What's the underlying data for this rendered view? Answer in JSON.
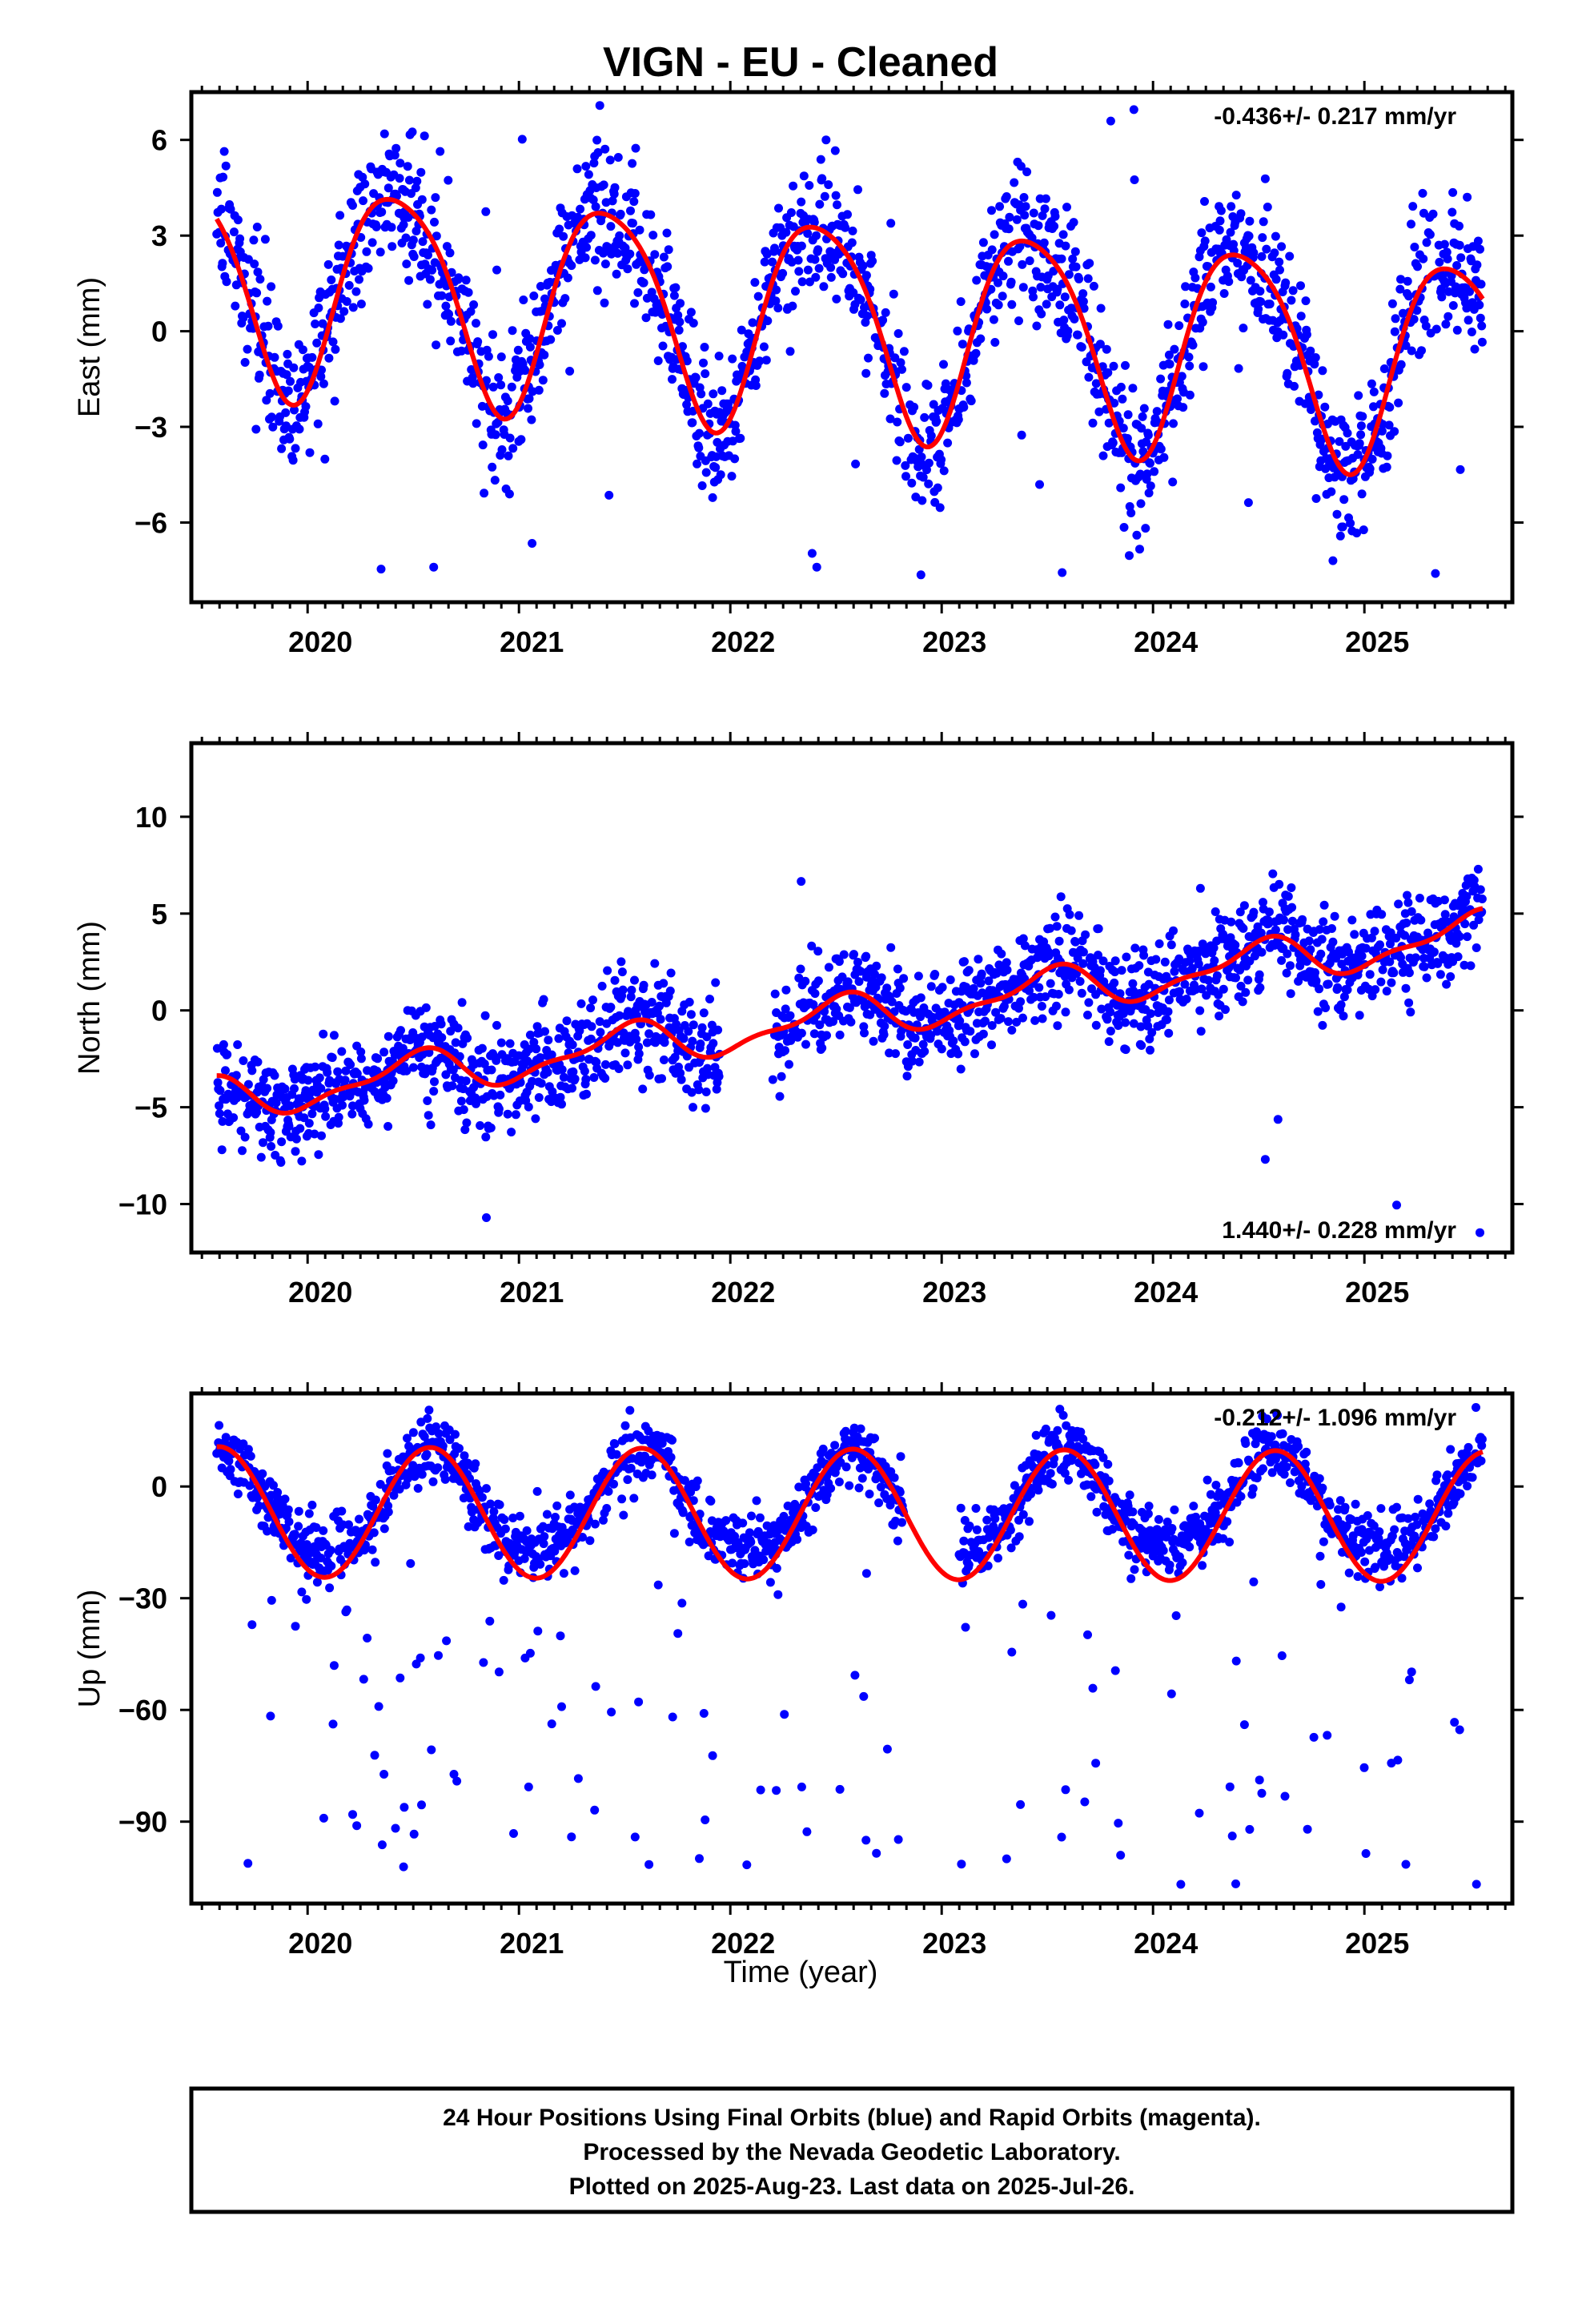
{
  "title": "VIGN  - EU - Cleaned",
  "xlabel": "Time (year)",
  "footer": {
    "line1": "24 Hour Positions Using Final Orbits (blue) and Rapid Orbits (magenta).",
    "line2": "Processed by the Nevada Geodetic Laboratory.",
    "line3": "Plotted on 2025-Aug-23. Last data on 2025-Jul-26."
  },
  "colors": {
    "points": "#0000ff",
    "model": "#ff0000",
    "frame": "#000000"
  },
  "chart_data": [
    {
      "type": "scatter",
      "component": "east",
      "ylabel": "East (mm)",
      "rate_text": "-0.436+/- 0.217 mm/yr",
      "rate_position": "top-right",
      "xlim": [
        2019.45,
        2025.7
      ],
      "ylim": [
        -8.5,
        7.5
      ],
      "xticks": [
        2020,
        2021,
        2022,
        2023,
        2024,
        2025
      ],
      "xtick_labels": [
        "2020",
        "2021",
        "2022",
        "2023",
        "2024",
        "2025"
      ],
      "yticks": [
        -6,
        -3,
        0,
        3,
        6
      ],
      "ytick_labels": [
        "−6",
        "−3",
        "0",
        "3",
        "6"
      ],
      "model": {
        "trend": -0.436,
        "offset": 1.6,
        "ref_year": 2019.6,
        "amplitude": 3.3,
        "peak_year_fraction": 0.42,
        "semi_amplitude": 0.5,
        "semi_peak": 0.2
      },
      "scatter": {
        "noise_sd": 1.1,
        "outlier_rate": 0.02,
        "outlier_range": [
          -8.0,
          7.2
        ]
      },
      "data_start": 2019.57,
      "data_end": 2025.56,
      "gaps": []
    },
    {
      "type": "scatter",
      "component": "north",
      "ylabel": "North (mm)",
      "rate_text": "1.440+/- 0.228 mm/yr",
      "rate_position": "bottom-right",
      "xlim": [
        2019.45,
        2025.7
      ],
      "ylim": [
        -12.5,
        13.8
      ],
      "xticks": [
        2020,
        2021,
        2022,
        2023,
        2024,
        2025
      ],
      "xtick_labels": [
        "2020",
        "2021",
        "2022",
        "2023",
        "2024",
        "2025"
      ],
      "yticks": [
        -10,
        -5,
        0,
        5,
        10
      ],
      "ytick_labels": [
        "−10",
        "−5",
        "0",
        "5",
        "10"
      ],
      "model": {
        "trend": 1.44,
        "offset": -4.6,
        "ref_year": 2019.6,
        "amplitude": 1.0,
        "peak_year_fraction": 0.5,
        "semi_amplitude": 0.4,
        "semi_peak": 0.1
      },
      "scatter": {
        "noise_sd": 1.3,
        "outlier_rate": 0.01,
        "outlier_range": [
          -12.0,
          13.2
        ]
      },
      "data_start": 2019.57,
      "data_end": 2025.56,
      "gaps": [
        [
          2021.95,
          2022.2
        ]
      ]
    },
    {
      "type": "scatter",
      "component": "up",
      "ylabel": "Up (mm)",
      "rate_text": "-0.212+/- 1.096 mm/yr",
      "rate_position": "top-right",
      "xlim": [
        2019.45,
        2025.7
      ],
      "ylim": [
        -112,
        25
      ],
      "xticks": [
        2020,
        2021,
        2022,
        2023,
        2024,
        2025
      ],
      "xtick_labels": [
        "2020",
        "2021",
        "2022",
        "2023",
        "2024",
        "2025"
      ],
      "yticks": [
        -90,
        -60,
        -30,
        0
      ],
      "ytick_labels": [
        "−90",
        "−60",
        "−30",
        "0"
      ],
      "model": {
        "trend": -0.212,
        "offset": -6.8,
        "ref_year": 2019.6,
        "amplitude": 17.5,
        "peak_year_fraction": 0.58,
        "semi_amplitude": 0,
        "semi_peak": 0
      },
      "scatter": {
        "noise_sd": 4.5,
        "outlier_rate": 0.07,
        "outlier_range": [
          -108,
          -20
        ],
        "level": -2
      },
      "data_start": 2019.57,
      "data_end": 2025.56,
      "gaps": [
        [
          2022.82,
          2023.08
        ]
      ]
    }
  ]
}
